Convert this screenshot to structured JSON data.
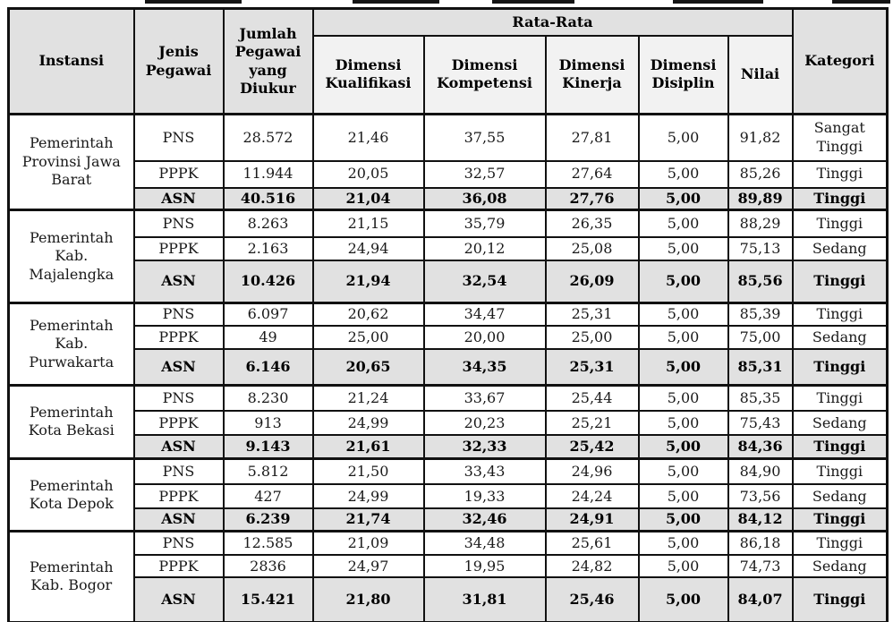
{
  "table": {
    "headers": {
      "instansi": "Instansi",
      "jenis_pegawai": "Jenis Pegawai",
      "jumlah": "Jumlah Pegawai yang Diukur",
      "rata_rata": "Rata-Rata",
      "sub": [
        "Dimensi Kualifikasi",
        "Dimensi Kompetensi",
        "Dimensi Kinerja",
        "Dimensi Disiplin",
        "Nilai"
      ],
      "kategori": "Kategori"
    },
    "colors": {
      "header_fill": "#e1e1e1",
      "subheader_fill": "#f2f2f2",
      "asn_row_fill": "#e1e1e1",
      "border": "#111111"
    },
    "groups": [
      {
        "instansi": "Pemerintah Provinsi Jawa Barat",
        "rows": [
          {
            "jenis": "PNS",
            "jumlah": "28.572",
            "kualifikasi": "21,46",
            "kompetensi": "37,55",
            "kinerja": "27,81",
            "disiplin": "5,00",
            "nilai": "91,82",
            "kategori": "Sangat Tinggi",
            "bold": false
          },
          {
            "jenis": "PPPK",
            "jumlah": "11.944",
            "kualifikasi": "20,05",
            "kompetensi": "32,57",
            "kinerja": "27,64",
            "disiplin": "5,00",
            "nilai": "85,26",
            "kategori": "Tinggi",
            "bold": false
          },
          {
            "jenis": "ASN",
            "jumlah": "40.516",
            "kualifikasi": "21,04",
            "kompetensi": "36,08",
            "kinerja": "27,76",
            "disiplin": "5,00",
            "nilai": "89,89",
            "kategori": "Tinggi",
            "bold": true
          }
        ]
      },
      {
        "instansi": "Pemerintah Kab. Majalengka",
        "rows": [
          {
            "jenis": "PNS",
            "jumlah": "8.263",
            "kualifikasi": "21,15",
            "kompetensi": "35,79",
            "kinerja": "26,35",
            "disiplin": "5,00",
            "nilai": "88,29",
            "kategori": "Tinggi",
            "bold": false
          },
          {
            "jenis": "PPPK",
            "jumlah": "2.163",
            "kualifikasi": "24,94",
            "kompetensi": "20,12",
            "kinerja": "25,08",
            "disiplin": "5,00",
            "nilai": "75,13",
            "kategori": "Sedang",
            "bold": false
          },
          {
            "jenis": "ASN",
            "jumlah": "10.426",
            "kualifikasi": "21,94",
            "kompetensi": "32,54",
            "kinerja": "26,09",
            "disiplin": "5,00",
            "nilai": "85,56",
            "kategori": "Tinggi",
            "bold": true
          }
        ]
      },
      {
        "instansi": "Pemerintah Kab. Purwakarta",
        "rows": [
          {
            "jenis": "PNS",
            "jumlah": "6.097",
            "kualifikasi": "20,62",
            "kompetensi": "34,47",
            "kinerja": "25,31",
            "disiplin": "5,00",
            "nilai": "85,39",
            "kategori": "Tinggi",
            "bold": false
          },
          {
            "jenis": "PPPK",
            "jumlah": "49",
            "kualifikasi": "25,00",
            "kompetensi": "20,00",
            "kinerja": "25,00",
            "disiplin": "5,00",
            "nilai": "75,00",
            "kategori": "Sedang",
            "bold": false
          },
          {
            "jenis": "ASN",
            "jumlah": "6.146",
            "kualifikasi": "20,65",
            "kompetensi": "34,35",
            "kinerja": "25,31",
            "disiplin": "5,00",
            "nilai": "85,31",
            "kategori": "Tinggi",
            "bold": true
          }
        ]
      },
      {
        "instansi": "Pemerintah Kota Bekasi",
        "rows": [
          {
            "jenis": "PNS",
            "jumlah": "8.230",
            "kualifikasi": "21,24",
            "kompetensi": "33,67",
            "kinerja": "25,44",
            "disiplin": "5,00",
            "nilai": "85,35",
            "kategori": "Tinggi",
            "bold": false
          },
          {
            "jenis": "PPPK",
            "jumlah": "913",
            "kualifikasi": "24,99",
            "kompetensi": "20,23",
            "kinerja": "25,21",
            "disiplin": "5,00",
            "nilai": "75,43",
            "kategori": "Sedang",
            "bold": false
          },
          {
            "jenis": "ASN",
            "jumlah": "9.143",
            "kualifikasi": "21,61",
            "kompetensi": "32,33",
            "kinerja": "25,42",
            "disiplin": "5,00",
            "nilai": "84,36",
            "kategori": "Tinggi",
            "bold": true
          }
        ]
      },
      {
        "instansi": "Pemerintah Kota Depok",
        "rows": [
          {
            "jenis": "PNS",
            "jumlah": "5.812",
            "kualifikasi": "21,50",
            "kompetensi": "33,43",
            "kinerja": "24,96",
            "disiplin": "5,00",
            "nilai": "84,90",
            "kategori": "Tinggi",
            "bold": false
          },
          {
            "jenis": "PPPK",
            "jumlah": "427",
            "kualifikasi": "24,99",
            "kompetensi": "19,33",
            "kinerja": "24,24",
            "disiplin": "5,00",
            "nilai": "73,56",
            "kategori": "Sedang",
            "bold": false
          },
          {
            "jenis": "ASN",
            "jumlah": "6.239",
            "kualifikasi": "21,74",
            "kompetensi": "32,46",
            "kinerja": "24,91",
            "disiplin": "5,00",
            "nilai": "84,12",
            "kategori": "Tinggi",
            "bold": true
          }
        ]
      },
      {
        "instansi": "Pemerintah Kab. Bogor",
        "rows": [
          {
            "jenis": "PNS",
            "jumlah": "12.585",
            "kualifikasi": "21,09",
            "kompetensi": "34,48",
            "kinerja": "25,61",
            "disiplin": "5,00",
            "nilai": "86,18",
            "kategori": "Tinggi",
            "bold": false
          },
          {
            "jenis": "PPPK",
            "jumlah": "2836",
            "kualifikasi": "24,97",
            "kompetensi": "19,95",
            "kinerja": "24,82",
            "disiplin": "5,00",
            "nilai": "74,73",
            "kategori": "Sedang",
            "bold": false
          },
          {
            "jenis": "ASN",
            "jumlah": "15.421",
            "kualifikasi": "21,80",
            "kompetensi": "31,81",
            "kinerja": "25,46",
            "disiplin": "5,00",
            "nilai": "84,07",
            "kategori": "Tinggi",
            "bold": true
          }
        ]
      }
    ]
  }
}
